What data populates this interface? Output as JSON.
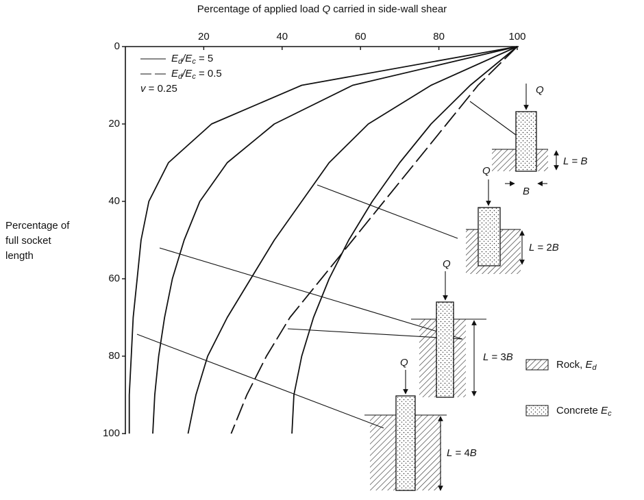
{
  "chart_data": {
    "type": "line",
    "title": [
      "Percentage of applied load ",
      "Q",
      " carried in side-wall shear"
    ],
    "y_label": [
      "Percentage of",
      "full socket",
      "length"
    ],
    "x": [
      0,
      10,
      20,
      30,
      40,
      50,
      60,
      70,
      80,
      90,
      100
    ],
    "xlim": [
      0,
      100
    ],
    "xticks": [
      0,
      20,
      40,
      60,
      80,
      100
    ],
    "loadlim": [
      0,
      100
    ],
    "loadticks": [
      20,
      40,
      60,
      80,
      100
    ],
    "series": [
      {
        "style": "solid",
        "color": "#111111",
        "values": [
          100,
          45,
          22,
          11,
          6,
          4,
          3,
          2,
          1.5,
          1,
          1
        ]
      },
      {
        "style": "solid",
        "color": "#111111",
        "values": [
          100,
          58,
          38,
          26,
          19,
          15,
          12,
          10,
          8.5,
          7.5,
          7
        ]
      },
      {
        "style": "solid",
        "color": "#111111",
        "values": [
          100,
          78,
          62,
          52,
          45,
          38,
          32,
          26,
          21,
          18,
          16
        ]
      },
      {
        "style": "dashed",
        "color": "#111111",
        "values": [
          100,
          90,
          82,
          74,
          66,
          58,
          50,
          42,
          36,
          31,
          27
        ]
      },
      {
        "style": "solid",
        "color": "#111111",
        "values": [
          100,
          88,
          78,
          70,
          63,
          57,
          52,
          48,
          45,
          43,
          42.5
        ]
      }
    ],
    "legend": [
      {
        "style": "solid",
        "text": [
          "E",
          "d",
          "/E",
          "c",
          " = 5"
        ]
      },
      {
        "style": "dashed",
        "text": [
          "E",
          "d",
          "/E",
          "c",
          " = 0.5"
        ]
      }
    ],
    "poisson": [
      "v",
      " = 0.25"
    ],
    "sockets": [
      {
        "q": "Q",
        "length": [
          "L",
          " = ",
          "B"
        ],
        "width": "B"
      },
      {
        "q": "Q",
        "length": [
          "L",
          " = 2",
          "B"
        ]
      },
      {
        "q": "Q",
        "length": [
          "L",
          " = 3",
          "B"
        ]
      },
      {
        "q": "Q",
        "length": [
          "L",
          " = 4",
          "B"
        ]
      }
    ],
    "materials": [
      {
        "text": [
          "Rock, ",
          "E",
          "d"
        ]
      },
      {
        "text": [
          "Concrete ",
          "E",
          "c"
        ]
      }
    ]
  }
}
